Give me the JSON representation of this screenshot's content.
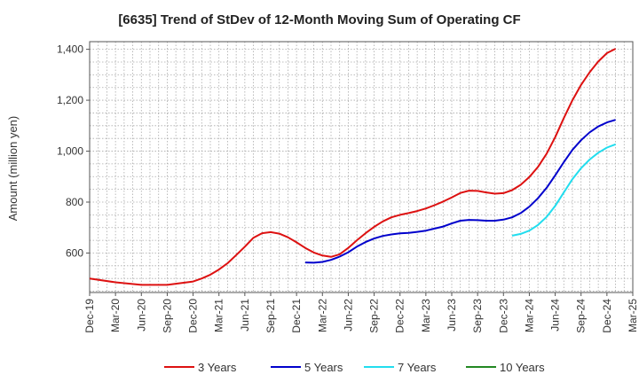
{
  "chart_data": {
    "type": "line",
    "title": "[6635]  Trend of StDev of 12-Month Moving Sum of Operating CF",
    "xlabel": "",
    "ylabel": "Amount (million yen)",
    "ylim": [
      445,
      1430
    ],
    "yticks": [
      600,
      800,
      1000,
      1200,
      1400
    ],
    "ytick_labels": [
      "600",
      "800",
      "1,000",
      "1,200",
      "1,400"
    ],
    "xticks": [
      "Dec-19",
      "Mar-20",
      "Jun-20",
      "Sep-20",
      "Dec-20",
      "Mar-21",
      "Jun-21",
      "Sep-21",
      "Dec-21",
      "Mar-22",
      "Jun-22",
      "Sep-22",
      "Dec-22",
      "Mar-23",
      "Jun-23",
      "Sep-23",
      "Dec-23",
      "Mar-24",
      "Jun-24",
      "Sep-24",
      "Dec-24",
      "Mar-25"
    ],
    "grid": true,
    "legend_position": "bottom",
    "series": [
      {
        "name": "3 Years",
        "color": "#dd1111",
        "points": [
          [
            "Dec-19",
            500
          ],
          [
            "Mar-20",
            485
          ],
          [
            "Jun-20",
            475
          ],
          [
            "Sep-20",
            475
          ],
          [
            "Dec-20",
            488
          ],
          [
            "Jan-21",
            500
          ],
          [
            "Feb-21",
            515
          ],
          [
            "Mar-21",
            535
          ],
          [
            "Apr-21",
            560
          ],
          [
            "May-21",
            592
          ],
          [
            "Jun-21",
            625
          ],
          [
            "Jul-21",
            660
          ],
          [
            "Aug-21",
            678
          ],
          [
            "Sep-21",
            682
          ],
          [
            "Oct-21",
            676
          ],
          [
            "Nov-21",
            662
          ],
          [
            "Dec-21",
            642
          ],
          [
            "Jan-22",
            620
          ],
          [
            "Feb-22",
            602
          ],
          [
            "Mar-22",
            590
          ],
          [
            "Apr-22",
            585
          ],
          [
            "May-22",
            595
          ],
          [
            "Jun-22",
            620
          ],
          [
            "Jul-22",
            650
          ],
          [
            "Aug-22",
            678
          ],
          [
            "Sep-22",
            703
          ],
          [
            "Oct-22",
            724
          ],
          [
            "Nov-22",
            740
          ],
          [
            "Dec-22",
            750
          ],
          [
            "Jan-23",
            757
          ],
          [
            "Feb-23",
            765
          ],
          [
            "Mar-23",
            775
          ],
          [
            "Apr-23",
            788
          ],
          [
            "May-23",
            802
          ],
          [
            "Jun-23",
            818
          ],
          [
            "Jul-23",
            836
          ],
          [
            "Aug-23",
            845
          ],
          [
            "Sep-23",
            844
          ],
          [
            "Oct-23",
            838
          ],
          [
            "Nov-23",
            833
          ],
          [
            "Dec-23",
            835
          ],
          [
            "Jan-24",
            847
          ],
          [
            "Feb-24",
            868
          ],
          [
            "Mar-24",
            898
          ],
          [
            "Apr-24",
            938
          ],
          [
            "May-24",
            990
          ],
          [
            "Jun-24",
            1055
          ],
          [
            "Jul-24",
            1130
          ],
          [
            "Aug-24",
            1200
          ],
          [
            "Sep-24",
            1260
          ],
          [
            "Oct-24",
            1310
          ],
          [
            "Nov-24",
            1352
          ],
          [
            "Dec-24",
            1385
          ],
          [
            "Jan-25",
            1402
          ]
        ]
      },
      {
        "name": "5 Years",
        "color": "#0000cc",
        "points": [
          [
            "Jan-22",
            563
          ],
          [
            "Feb-22",
            562
          ],
          [
            "Mar-22",
            565
          ],
          [
            "Apr-22",
            573
          ],
          [
            "May-22",
            586
          ],
          [
            "Jun-22",
            603
          ],
          [
            "Jul-22",
            625
          ],
          [
            "Aug-22",
            643
          ],
          [
            "Sep-22",
            657
          ],
          [
            "Oct-22",
            667
          ],
          [
            "Nov-22",
            673
          ],
          [
            "Dec-22",
            677
          ],
          [
            "Jan-23",
            679
          ],
          [
            "Feb-23",
            683
          ],
          [
            "Mar-23",
            688
          ],
          [
            "Apr-23",
            696
          ],
          [
            "May-23",
            704
          ],
          [
            "Jun-23",
            716
          ],
          [
            "Jul-23",
            727
          ],
          [
            "Aug-23",
            730
          ],
          [
            "Sep-23",
            729
          ],
          [
            "Oct-23",
            727
          ],
          [
            "Nov-23",
            727
          ],
          [
            "Dec-23",
            731
          ],
          [
            "Jan-24",
            740
          ],
          [
            "Feb-24",
            757
          ],
          [
            "Mar-24",
            782
          ],
          [
            "Apr-24",
            815
          ],
          [
            "May-24",
            856
          ],
          [
            "Jun-24",
            905
          ],
          [
            "Jul-24",
            957
          ],
          [
            "Aug-24",
            1005
          ],
          [
            "Sep-24",
            1043
          ],
          [
            "Oct-24",
            1074
          ],
          [
            "Nov-24",
            1097
          ],
          [
            "Dec-24",
            1113
          ],
          [
            "Jan-25",
            1123
          ]
        ]
      },
      {
        "name": "7 Years",
        "color": "#22ddee",
        "points": [
          [
            "Jan-24",
            668
          ],
          [
            "Feb-24",
            675
          ],
          [
            "Mar-24",
            688
          ],
          [
            "Apr-24",
            710
          ],
          [
            "May-24",
            742
          ],
          [
            "Jun-24",
            785
          ],
          [
            "Jul-24",
            838
          ],
          [
            "Aug-24",
            890
          ],
          [
            "Sep-24",
            933
          ],
          [
            "Oct-24",
            967
          ],
          [
            "Nov-24",
            994
          ],
          [
            "Dec-24",
            1014
          ],
          [
            "Jan-25",
            1027
          ]
        ]
      },
      {
        "name": "10 Years",
        "color": "#228822",
        "points": []
      }
    ]
  }
}
